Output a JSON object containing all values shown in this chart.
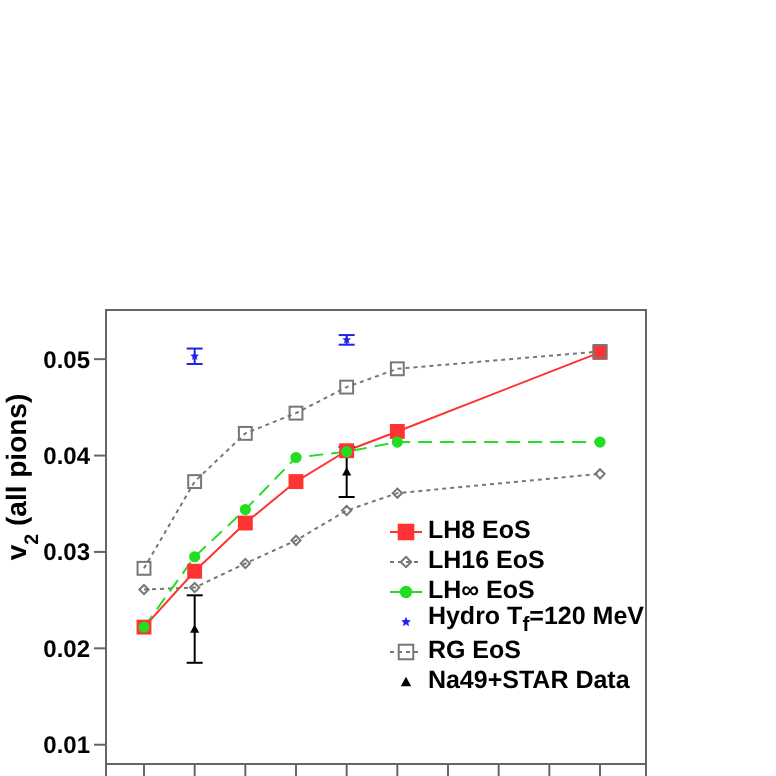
{
  "chart_data": {
    "type": "line",
    "ylabel": "v$_{2}$ (all pions)",
    "categories": [
      null,
      null,
      null,
      null,
      null,
      null,
      null,
      null,
      null,
      null
    ],
    "ylim": [
      0.008,
      0.0551
    ],
    "yticks": [
      0.01,
      0.02,
      0.03,
      0.04,
      0.05
    ],
    "legend": "bottom right",
    "series": [
      {
        "name": "LH8 EoS",
        "color": "#ff3333",
        "marker": "square",
        "line_style": "solid",
        "values": [
          0.0222,
          0.028,
          0.033,
          0.0373,
          0.0405,
          0.0425,
          null,
          null,
          null,
          0.0507
        ]
      },
      {
        "name": "LH16 EoS",
        "color": "#777777",
        "marker": "diamond",
        "line_style": "dotted",
        "values": [
          0.0261,
          0.0263,
          0.0288,
          0.0312,
          0.0343,
          0.0361,
          null,
          null,
          null,
          0.0381
        ]
      },
      {
        "name": "LH∞ EoS",
        "color": "#22dd22",
        "marker": "circle",
        "line_style": "dashed",
        "values": [
          0.0222,
          0.0295,
          0.0344,
          0.0398,
          0.0404,
          0.0414,
          null,
          null,
          null,
          0.0414
        ]
      },
      {
        "name": "Hydro T$_{f}$=120 MeV",
        "type": "scatter",
        "color": "#2222ee",
        "marker": "star",
        "values": [
          null,
          0.0503,
          null,
          null,
          0.052,
          null,
          null,
          null,
          null,
          null
        ],
        "errors": [
          null,
          0.0008,
          null,
          null,
          0.0005,
          null,
          null,
          null,
          null,
          null
        ]
      },
      {
        "name": "RG EoS",
        "color": "#777777",
        "marker": "square",
        "line_style": "dotted",
        "values": [
          0.0283,
          0.0373,
          0.0423,
          0.0444,
          0.0471,
          0.049,
          null,
          null,
          null,
          0.0508
        ]
      },
      {
        "name": "Na49+STAR Data",
        "type": "scatter",
        "color": "#000000",
        "marker": "triangle",
        "values": [
          null,
          0.022,
          null,
          null,
          0.0383,
          null,
          null,
          null,
          null,
          null
        ],
        "errors": [
          null,
          0.0035,
          null,
          null,
          0.0026,
          null,
          null,
          null,
          null,
          null
        ]
      }
    ]
  }
}
